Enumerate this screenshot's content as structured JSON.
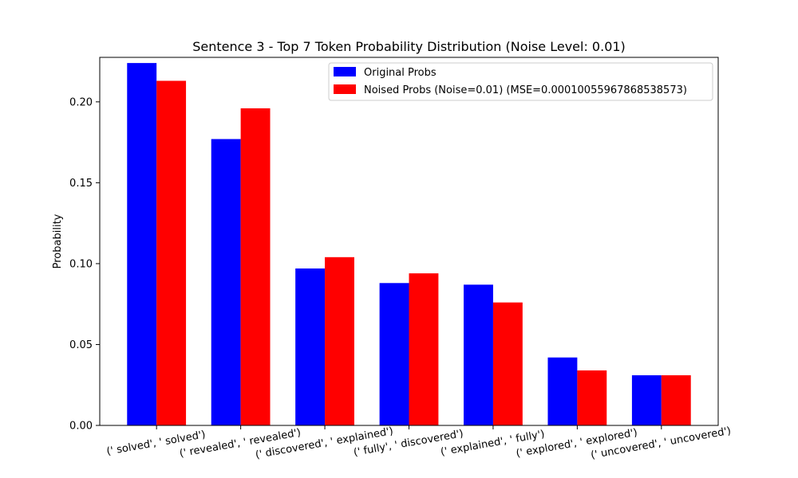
{
  "chart_data": {
    "type": "bar",
    "title": "Sentence 3 - Top 7 Token Probability Distribution (Noise Level: 0.01)",
    "xlabel": "",
    "ylabel": "Probability",
    "categories": [
      "(' solved', ' solved')",
      "(' revealed', ' revealed')",
      "(' discovered', ' explained')",
      "(' fully', ' discovered')",
      "(' explained', ' fully')",
      "(' explored', ' explored')",
      "(' uncovered', ' uncovered')"
    ],
    "series": [
      {
        "name": "Original Probs",
        "color": "#0000ff",
        "values": [
          0.224,
          0.177,
          0.097,
          0.088,
          0.087,
          0.042,
          0.031
        ]
      },
      {
        "name": "Noised Probs (Noise=0.01) (MSE=0.00010055967868538573)",
        "color": "#ff0000",
        "values": [
          0.213,
          0.196,
          0.104,
          0.094,
          0.076,
          0.034,
          0.031
        ]
      }
    ],
    "ylim": [
      0,
      0.2275
    ],
    "yticks": [
      0.0,
      0.05,
      0.1,
      0.15,
      0.2
    ],
    "ytick_labels": [
      "0.00",
      "0.05",
      "0.10",
      "0.15",
      "0.20"
    ],
    "grid": false,
    "legend_position": "upper-right"
  }
}
